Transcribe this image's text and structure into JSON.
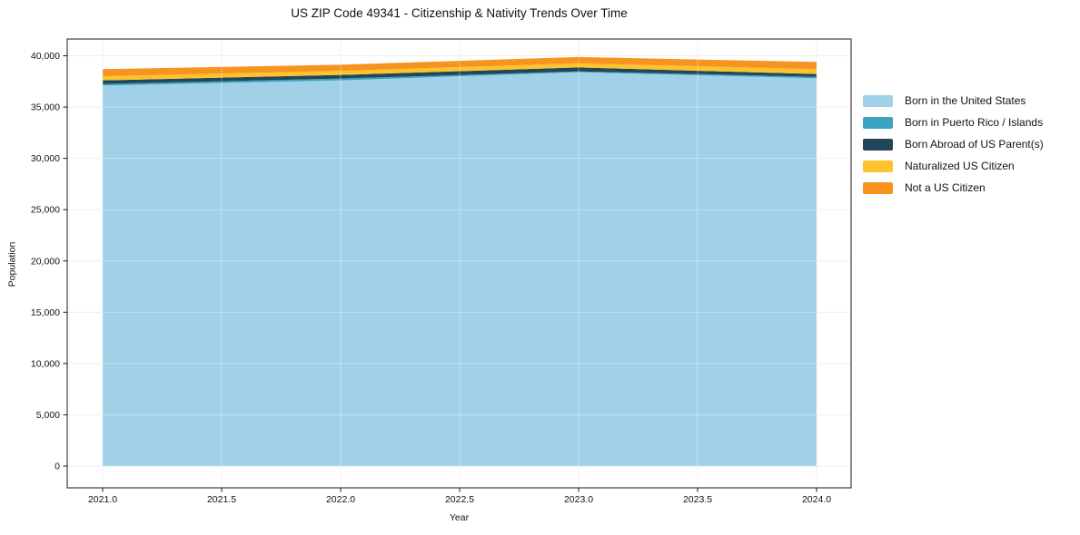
{
  "title": "US ZIP Code 49341 - Citizenship & Nativity Trends Over Time",
  "chart_data": {
    "type": "area",
    "stacked": true,
    "title": "US ZIP Code 49341 - Citizenship & Nativity Trends Over Time",
    "xlabel": "Year",
    "ylabel": "Population",
    "x": [
      2021,
      2022,
      2023,
      2024
    ],
    "x_tick_labels": [
      "2021.0",
      "2021.5",
      "2022.0",
      "2022.5",
      "2023.0",
      "2023.5",
      "2024.0"
    ],
    "y_tick_labels": [
      "0",
      "5,000",
      "10,000",
      "15,000",
      "20,000",
      "25,000",
      "30,000",
      "35,000",
      "40,000"
    ],
    "xlim": [
      2020.85,
      2024.15
    ],
    "ylim": [
      -2000,
      41800
    ],
    "grid": true,
    "legend_position": "right-outside",
    "series": [
      {
        "name": "Born in the United States",
        "color": "#a1d1e8",
        "values": [
          37100,
          37600,
          38400,
          37800
        ]
      },
      {
        "name": "Born in Puerto Rico / Islands",
        "color": "#39a3c2",
        "values": [
          150,
          180,
          80,
          150
        ]
      },
      {
        "name": "Born Abroad of US Parent(s)",
        "color": "#23465a",
        "values": [
          350,
          350,
          380,
          270
        ]
      },
      {
        "name": "Naturalized US Citizen",
        "color": "#fcc32d",
        "values": [
          400,
          400,
          400,
          480
        ]
      },
      {
        "name": "Not a US Citizen",
        "color": "#f7941f",
        "values": [
          700,
          600,
          620,
          700
        ]
      }
    ],
    "style": {
      "grid_color": "#e7e7e7",
      "axis_color": "#1a1a1a",
      "text_color": "#111111",
      "background": "#ffffff"
    }
  }
}
